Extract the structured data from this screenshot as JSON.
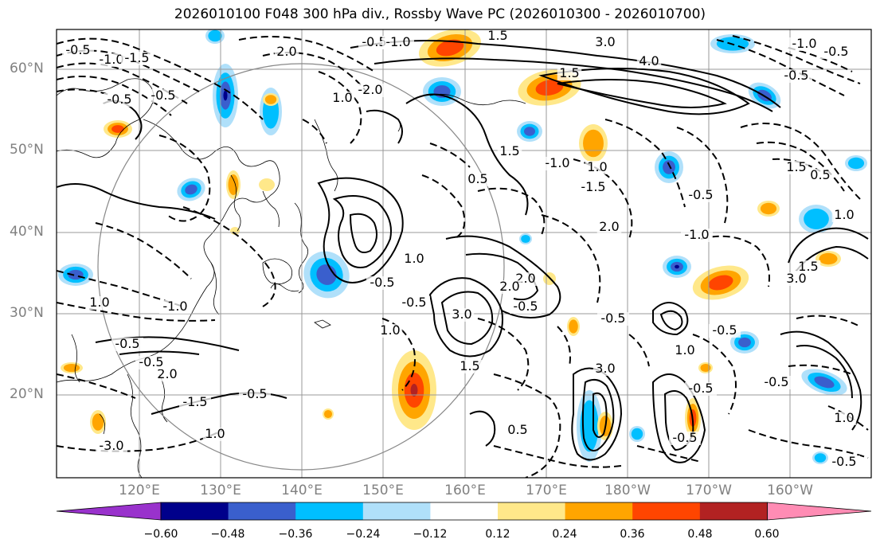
{
  "title": "2026010100 F048 300 hPa div., Rossby Wave PC (2026010300 - 2026010700)",
  "lat_labels": [
    "60°N",
    "50°N",
    "40°N",
    "30°N",
    "20°N"
  ],
  "lon_labels": [
    "120°E",
    "130°E",
    "140°E",
    "150°E",
    "160°E",
    "170°E",
    "180°W",
    "170°W",
    "160°W"
  ],
  "contour_labels": [
    "-0.5",
    "-1.0",
    "-1.5",
    "2.0",
    "-0.5",
    "-1.0",
    "1.5",
    "3.0",
    "4.0",
    "-1.0",
    "-0.5",
    "-0.5",
    "1.5",
    "-0.5",
    "-0.5",
    "1.0",
    "-2.0",
    "0.5",
    "1.5",
    "-1.0",
    "1.0",
    "-1.5",
    "2.0",
    "-0.5",
    "-1.0",
    "1.5",
    "0.5",
    "1.0",
    "1.5",
    "3.0",
    "2.0",
    "1.0",
    "-0.5",
    "-0.5",
    "2.0",
    "3.0",
    "1.0",
    "1.5",
    "-0.5",
    "3.0",
    "-0.5",
    "1.0",
    "-0.5",
    "-0.5",
    "-0.5",
    "-0.5",
    "1.0",
    "0.5",
    "-0.5",
    "-3.0",
    "1.0",
    "-1.5",
    "2.0",
    "-0.5",
    "-0.5",
    "-0.5",
    "1.0",
    "-1.0"
  ],
  "colorbar": {
    "ticks": [
      "−0.60",
      "−0.48",
      "−0.36",
      "−0.24",
      "−0.12",
      "0.12",
      "0.24",
      "0.36",
      "0.48",
      "0.60"
    ],
    "colors": [
      "#9932cc",
      "#00008b",
      "#3a5fcd",
      "#00bfff",
      "#b0e0fa",
      "#ffffff",
      "#ffe88a",
      "#ffa500",
      "#ff4500",
      "#b22222",
      "#ff8cb4"
    ]
  },
  "fill_colors": {
    "neg1": "#b0e0fa",
    "neg2": "#00bfff",
    "neg3": "#3a5fcd",
    "neg4": "#00008b",
    "pos1": "#ffe88a",
    "pos2": "#ffa500",
    "pos3": "#ff4500",
    "pos4": "#b22222"
  }
}
